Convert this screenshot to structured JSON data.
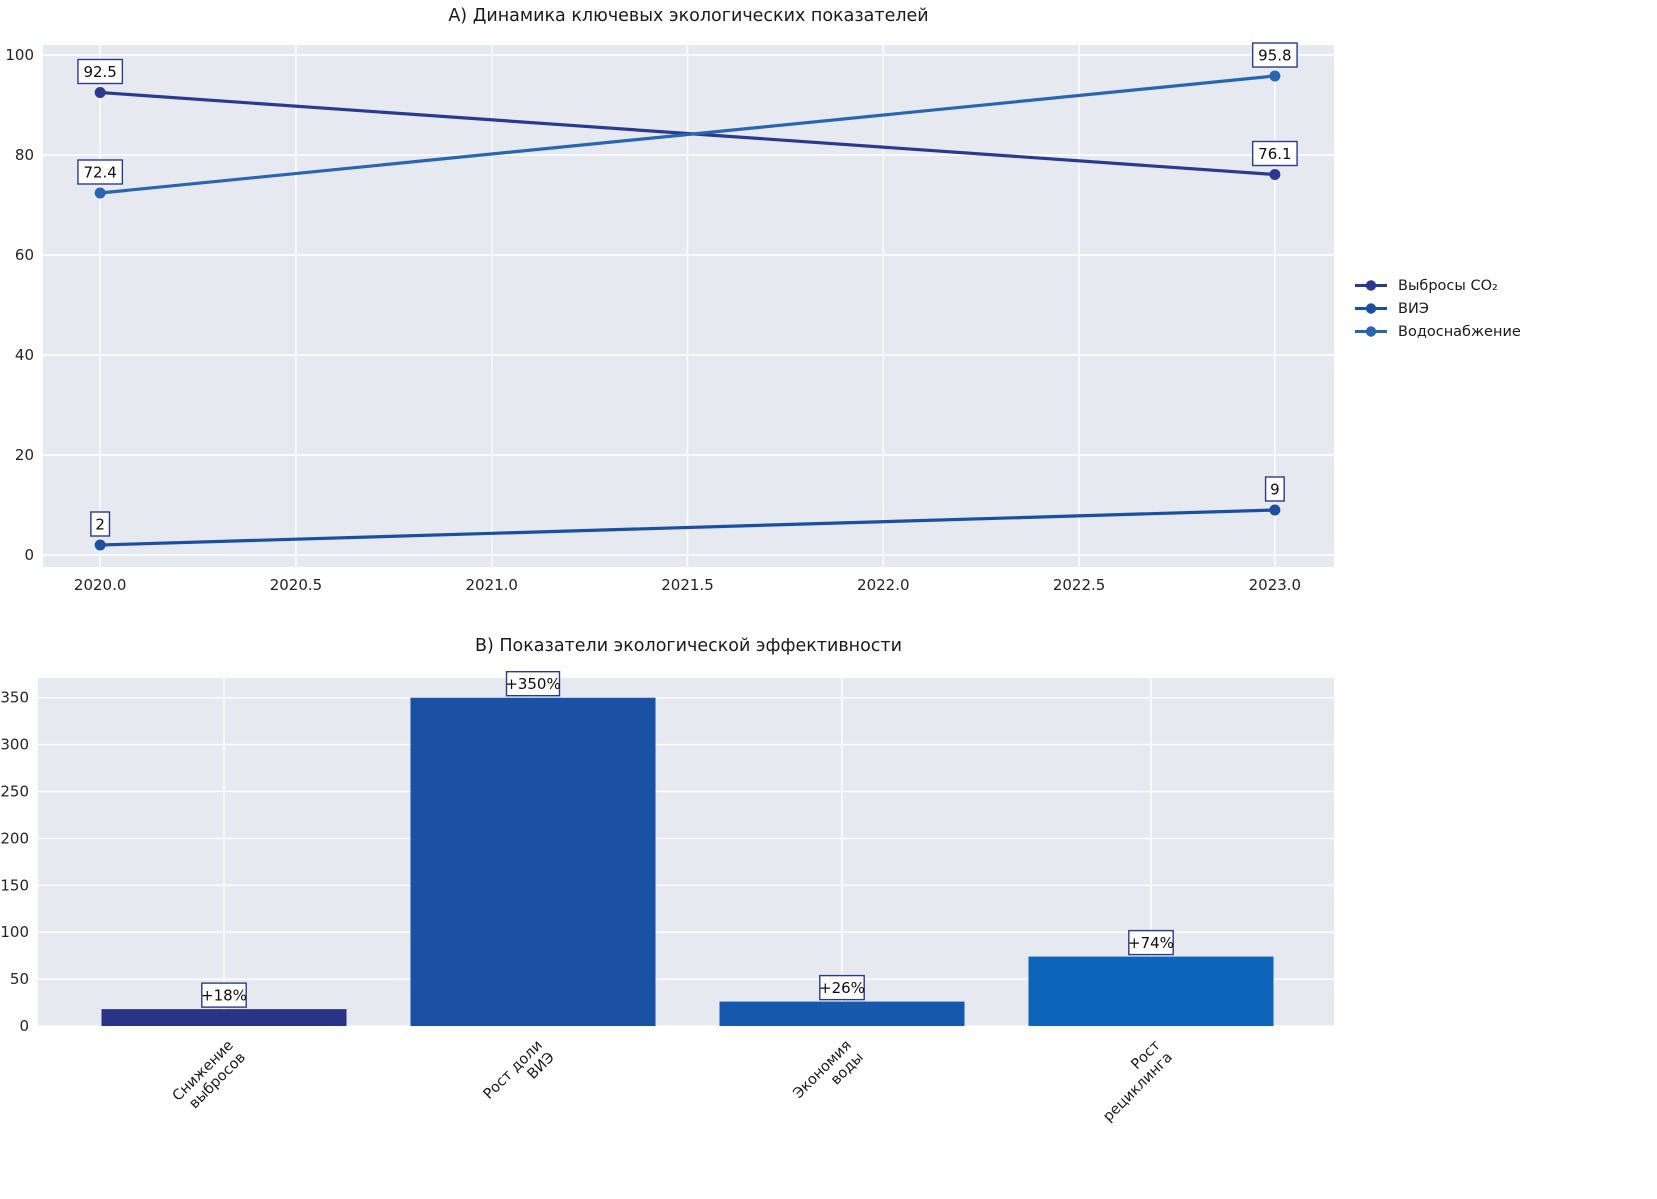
{
  "figure": {
    "background": "#ffffff",
    "plot_background": "#e6e9f0",
    "grid_color": "#ffffff",
    "text_color": "#242424",
    "annotation_box_bg": "#ffffff",
    "annotation_box_border": "#2c3a8c"
  },
  "chart_data": [
    {
      "type": "line",
      "title": "А) Динамика ключевых экологических показателей",
      "x": [
        2020,
        2023
      ],
      "xlim": [
        2019.854,
        2023.151
      ],
      "ylim": [
        -2.4,
        102
      ],
      "xticks": [
        2020.0,
        2020.5,
        2021.0,
        2021.5,
        2022.0,
        2022.5,
        2023.0
      ],
      "xtick_labels": [
        "2020.0",
        "2020.5",
        "2021.0",
        "2021.5",
        "2022.0",
        "2022.5",
        "2023.0"
      ],
      "yticks": [
        0,
        20,
        40,
        60,
        80,
        100
      ],
      "grid": true,
      "legend_position": "center-right-outside",
      "series": [
        {
          "name": "Выбросы CO₂",
          "color": "#2b3990",
          "values": [
            92.5,
            76.1
          ],
          "point_labels": [
            "92.5",
            "76.1"
          ]
        },
        {
          "name": "ВИЭ",
          "color": "#1b4fa0",
          "values": [
            2,
            9
          ],
          "point_labels": [
            "2",
            "9"
          ]
        },
        {
          "name": "Водоснабжение",
          "color": "#2a65b2",
          "values": [
            72.4,
            95.8
          ],
          "point_labels": [
            "72.4",
            "95.8"
          ]
        }
      ]
    },
    {
      "type": "bar",
      "title": "В) Показатели экологической эффективности",
      "categories": [
        "Снижение\nвыбросов",
        "Рост доли\nВИЭ",
        "Экономия\nводы",
        "Рост\nрециклинга"
      ],
      "values": [
        18,
        350,
        26,
        74
      ],
      "bar_labels": [
        "+18%",
        "+350%",
        "+26%",
        "+74%"
      ],
      "bar_colors": [
        "#2a3386",
        "#1a51a5",
        "#1658ac",
        "#0d64b8"
      ],
      "yticks": [
        0,
        50,
        100,
        150,
        200,
        250,
        300,
        350
      ],
      "ylim": [
        0,
        371
      ],
      "grid": true,
      "legend_position": "none"
    }
  ]
}
